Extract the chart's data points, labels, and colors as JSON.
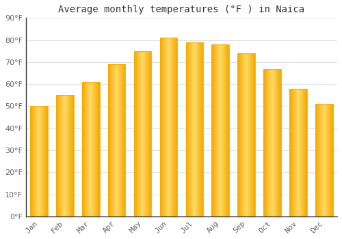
{
  "title": "Average monthly temperatures (°F ) in Naica",
  "months": [
    "Jan",
    "Feb",
    "Mar",
    "Apr",
    "May",
    "Jun",
    "Jul",
    "Aug",
    "Sep",
    "Oct",
    "Nov",
    "Dec"
  ],
  "values": [
    50,
    55,
    61,
    69,
    75,
    81,
    79,
    78,
    74,
    67,
    58,
    51
  ],
  "bar_color_center": "#FFD966",
  "bar_color_edge": "#F5A800",
  "background_color": "#FFFFFF",
  "grid_color": "#E0E0E0",
  "ylim": [
    0,
    90
  ],
  "yticks": [
    0,
    10,
    20,
    30,
    40,
    50,
    60,
    70,
    80,
    90
  ],
  "title_fontsize": 10,
  "tick_fontsize": 8,
  "axis_color": "#333333",
  "tick_label_color": "#666666"
}
